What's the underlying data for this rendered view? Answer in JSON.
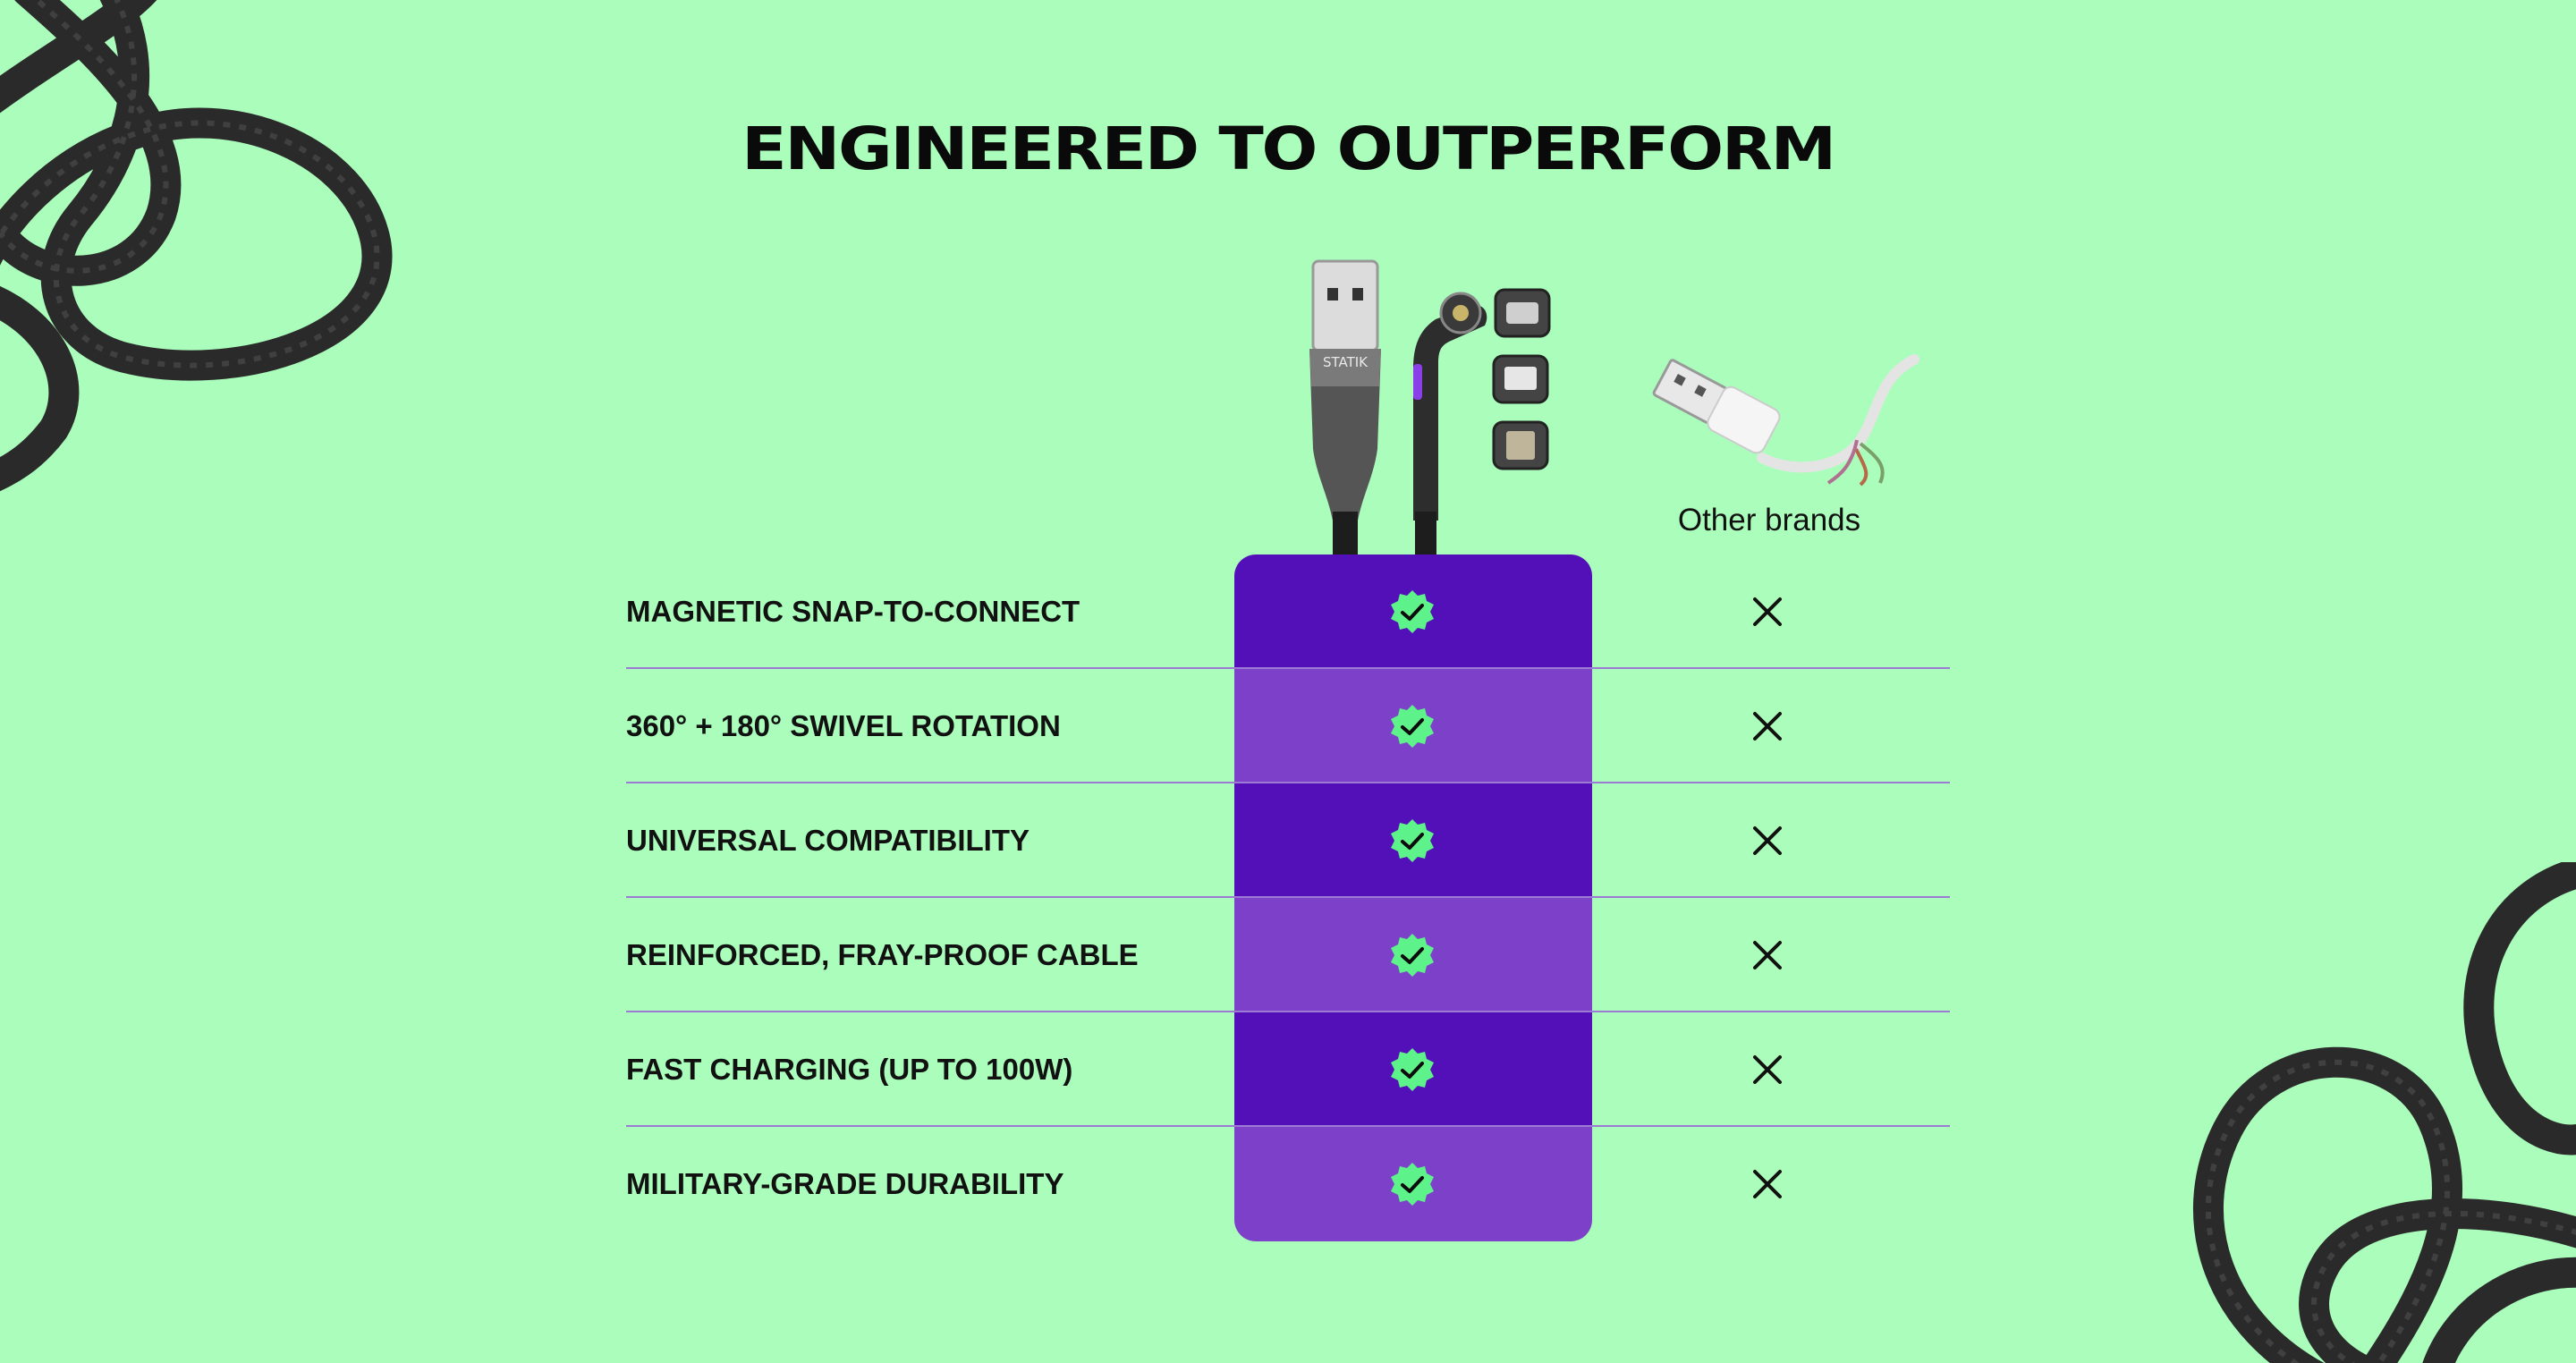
{
  "page": {
    "title": "ENGINEERED TO OUTPERFORM",
    "background_color": "#abfdbb"
  },
  "comparison": {
    "our_product": {
      "image_icon": "statik-magnetic-cable-image",
      "highlight_colors": [
        "#5410b8",
        "#7d40c8"
      ],
      "check_icon": "verified-check-icon",
      "brand_text_on_product": "STATIK"
    },
    "other": {
      "label": "Other brands",
      "image_icon": "frayed-usb-cable-image",
      "cross_icon": "close-icon"
    },
    "features": [
      {
        "label": "MAGNETIC SNAP-TO-CONNECT",
        "ours": true,
        "other": false
      },
      {
        "label": "360° + 180° SWIVEL ROTATION",
        "ours": true,
        "other": false
      },
      {
        "label": "UNIVERSAL COMPATIBILITY",
        "ours": true,
        "other": false
      },
      {
        "label": "REINFORCED, FRAY-PROOF CABLE",
        "ours": true,
        "other": false
      },
      {
        "label": "FAST CHARGING (UP TO 100W)",
        "ours": true,
        "other": false
      },
      {
        "label": "MILITARY-GRADE DURABILITY",
        "ours": true,
        "other": false
      }
    ]
  }
}
